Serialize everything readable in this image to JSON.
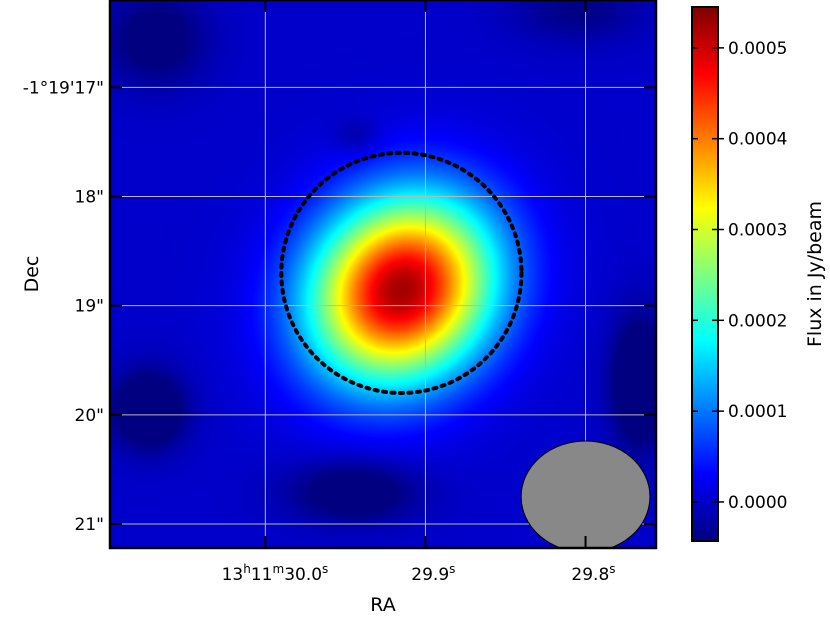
{
  "chart_data": {
    "type": "heatmap",
    "title": "",
    "xlabel": "RA",
    "ylabel": "Dec",
    "colormap": "jet",
    "grid": true,
    "grid_color": "#b8b8b8",
    "x_ticks": [
      {
        "h": "13",
        "m": "11",
        "s": "30.0",
        "ra_sec": 30.0
      },
      {
        "h": "",
        "m": "",
        "s": "29.9",
        "ra_sec": 29.9
      },
      {
        "h": "",
        "m": "",
        "s": "29.8",
        "ra_sec": 29.8
      }
    ],
    "y_ticks": [
      {
        "label": "-1°19'17\"",
        "dec_arcsec": 17
      },
      {
        "label": "18\"",
        "dec_arcsec": 18
      },
      {
        "label": "19\"",
        "dec_arcsec": 19
      },
      {
        "label": "20\"",
        "dec_arcsec": 20
      },
      {
        "label": "21\"",
        "dec_arcsec": 21
      }
    ],
    "xlim_ra_sec": [
      30.097,
      29.756
    ],
    "ylim_dec_arcsec": [
      16.2,
      21.22
    ],
    "colorbar": {
      "label": "Flux in Jy/beam",
      "vmin": -4.3e-05,
      "vmax": 0.000545,
      "ticks": [
        0.0,
        0.0001,
        0.0002,
        0.0003,
        0.0004,
        0.0005
      ],
      "tick_labels": [
        "0.0000",
        "0.0001",
        "0.0002",
        "0.0003",
        "0.0004",
        "0.0005"
      ]
    },
    "components": [
      {
        "name": "source",
        "ra_sec": 29.915,
        "dec_arcsec": 18.85,
        "sigma_ra_sec": 0.038,
        "sigma_dec_arcsec": 0.6,
        "peak": 0.000525
      },
      {
        "name": "negative-left",
        "ra_sec": 30.073,
        "dec_arcsec": 19.95,
        "sigma_ra_sec": 0.016,
        "sigma_dec_arcsec": 0.25,
        "peak": -9e-05
      },
      {
        "name": "negative-right",
        "ra_sec": 29.767,
        "dec_arcsec": 19.7,
        "sigma_ra_sec": 0.012,
        "sigma_dec_arcsec": 0.42,
        "peak": -9e-05
      },
      {
        "name": "negative-bottom",
        "ra_sec": 29.945,
        "dec_arcsec": 20.7,
        "sigma_ra_sec": 0.028,
        "sigma_dec_arcsec": 0.2,
        "peak": -7e-05
      },
      {
        "name": "negative-topleft",
        "ra_sec": 30.068,
        "dec_arcsec": 16.55,
        "sigma_ra_sec": 0.022,
        "sigma_dec_arcsec": 0.3,
        "peak": -6e-05
      },
      {
        "name": "negative-topright",
        "ra_sec": 29.805,
        "dec_arcsec": 16.3,
        "sigma_ra_sec": 0.028,
        "sigma_dec_arcsec": 0.2,
        "peak": -4e-05
      },
      {
        "name": "negative-small",
        "ra_sec": 29.943,
        "dec_arcsec": 17.45,
        "sigma_ra_sec": 0.01,
        "sigma_dec_arcsec": 0.12,
        "peak": -3e-05
      }
    ],
    "aperture": {
      "ra_sec": 29.915,
      "dec_arcsec": 18.7,
      "radius_arcsec": 1.1,
      "style": "dotted",
      "color": "#000000"
    },
    "beam": {
      "ra_sec": 29.8,
      "dec_arcsec": 20.75,
      "width_arcsec": 1.18,
      "height_arcsec": 1.02,
      "color": "#888888"
    }
  }
}
